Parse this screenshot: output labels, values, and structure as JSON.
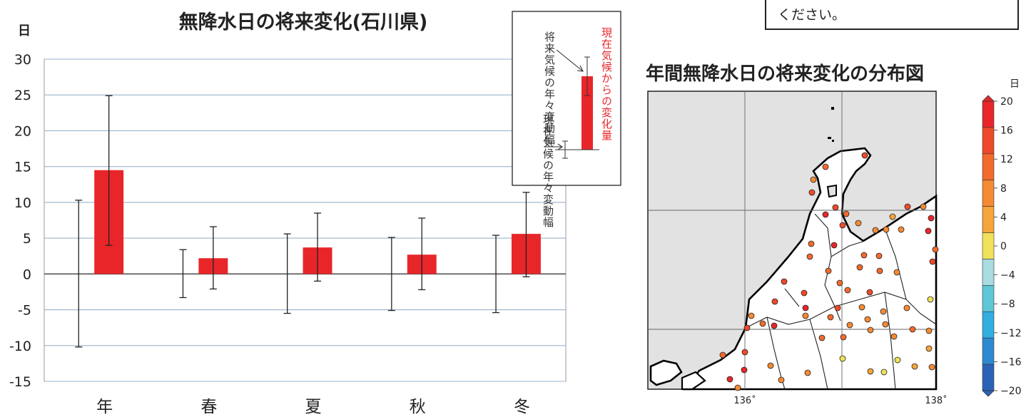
{
  "left": {
    "title": "無降水日の将来変化(石川県)",
    "y_unit": "日",
    "legend": {
      "top_text_red": "現在気候からの変化量",
      "future_range_label": "将来気候の年々変動幅",
      "current_range_label": "現在気候の年々変動幅"
    }
  },
  "right": {
    "title": "年間無降水日の将来変化の分布図",
    "note_text": "ください。",
    "colorbar_unit": "日",
    "colorbar_ticks": [
      "20",
      "16",
      "12",
      "8",
      "4",
      "0",
      "−4",
      "−8",
      "−12",
      "−16",
      "−20"
    ],
    "colorbar_colors": [
      "#e8262a",
      "#ee4a2a",
      "#f26a2c",
      "#f58a32",
      "#f7a43a",
      "#f0e15a",
      "#a9dbe0",
      "#5fc6d6",
      "#33aee0",
      "#2d8ad0",
      "#2a62b6"
    ],
    "lon_labels": [
      "136˚",
      "138˚"
    ],
    "land_color": "#ffffff",
    "sea_color": "#e2e2e2"
  },
  "chart_data": {
    "type": "bar",
    "title": "無降水日の将来変化(石川県)",
    "ylabel": "日",
    "categories": [
      "年",
      "春",
      "夏",
      "秋",
      "冬"
    ],
    "ylim": [
      -15,
      30
    ],
    "yticks": [
      "30",
      "25",
      "20",
      "15",
      "10",
      "5",
      "0",
      "-5",
      "-10",
      "-15"
    ],
    "series": [
      {
        "name": "現在気候からの変化量",
        "values": [
          14.5,
          2.2,
          3.7,
          2.7,
          5.6
        ],
        "color": "#e8262a"
      }
    ],
    "error_bars": {
      "current": [
        [
          -10.2,
          10.3
        ],
        [
          -3.3,
          3.4
        ],
        [
          -5.5,
          5.6
        ],
        [
          -5.1,
          5.1
        ],
        [
          -5.4,
          5.4
        ]
      ],
      "future": [
        [
          4.0,
          24.9
        ],
        [
          -2.1,
          6.6
        ],
        [
          -1.0,
          8.5
        ],
        [
          -2.2,
          7.8
        ],
        [
          -0.4,
          11.4
        ]
      ]
    },
    "grid": true
  }
}
